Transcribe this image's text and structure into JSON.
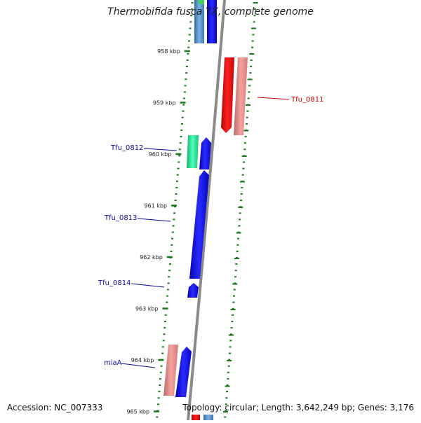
{
  "title": "Thermobifida fusca YX, complete genome",
  "footer": {
    "accession": "Accession: NC_007333",
    "summary": "Topology: circular; Length: 3,642,249 bp; Genes: 3,176"
  },
  "ticks": [
    {
      "label": "958 kbp",
      "kbp": 958
    },
    {
      "label": "959 kbp",
      "kbp": 959
    },
    {
      "label": "960 kbp",
      "kbp": 960
    },
    {
      "label": "961 kbp",
      "kbp": 961
    },
    {
      "label": "962 kbp",
      "kbp": 962
    },
    {
      "label": "963 kbp",
      "kbp": 963
    },
    {
      "label": "964 kbp",
      "kbp": 964
    },
    {
      "label": "965 kbp",
      "kbp": 965
    }
  ],
  "genes": [
    {
      "name": "Tfu_0811",
      "strand": "reverse",
      "color": "#e8140f",
      "label_color": "#cc0000"
    },
    {
      "name": "Tfu_0812",
      "strand": "forward",
      "color": "#1010e6",
      "label_color": "#0a0a99"
    },
    {
      "name": "Tfu_0813",
      "strand": "forward",
      "color": "#1010e6",
      "label_color": "#0a0a99"
    },
    {
      "name": "Tfu_0814",
      "strand": "forward",
      "color": "#1010e6",
      "label_color": "#0a0a99"
    },
    {
      "name": "miaA",
      "strand": "forward",
      "color": "#1010e6",
      "label_color": "#0a0a99"
    }
  ],
  "colors": {
    "backbone": "#8a8a8a",
    "tick_marks": "#1a7a1a",
    "forward": "#1010e6",
    "reverse": "#e8140f",
    "reverse_pale": "#e88a86",
    "other_feature": "#22dd99",
    "steelblue_feature": "#4a86c0"
  }
}
